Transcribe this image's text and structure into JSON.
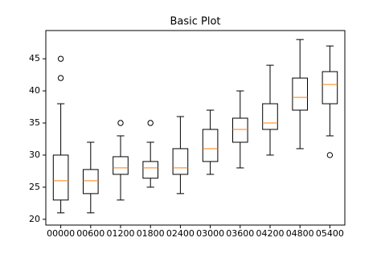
{
  "chart_data": {
    "type": "box",
    "title": "Basic Plot",
    "categories": [
      "00000",
      "00600",
      "01200",
      "01800",
      "02400",
      "03000",
      "03600",
      "04200",
      "04800",
      "05400"
    ],
    "boxes": [
      {
        "low": 21,
        "q1": 23,
        "median": 26,
        "q3": 30,
        "high": 38,
        "outliers": [
          42,
          45
        ]
      },
      {
        "low": 21,
        "q1": 24,
        "median": 26,
        "q3": 27.75,
        "high": 32,
        "outliers": []
      },
      {
        "low": 23,
        "q1": 27,
        "median": 28,
        "q3": 29.75,
        "high": 33,
        "outliers": [
          35
        ]
      },
      {
        "low": 25,
        "q1": 26.4,
        "median": 28,
        "q3": 29,
        "high": 32,
        "outliers": [
          35
        ]
      },
      {
        "low": 24,
        "q1": 27,
        "median": 28,
        "q3": 31,
        "high": 36,
        "outliers": []
      },
      {
        "low": 27,
        "q1": 29,
        "median": 31,
        "q3": 34,
        "high": 37,
        "outliers": []
      },
      {
        "low": 28,
        "q1": 32,
        "median": 34,
        "q3": 35.75,
        "high": 40,
        "outliers": []
      },
      {
        "low": 30,
        "q1": 34,
        "median": 35,
        "q3": 38,
        "high": 44,
        "outliers": []
      },
      {
        "low": 31,
        "q1": 37,
        "median": 39,
        "q3": 42,
        "high": 48,
        "outliers": []
      },
      {
        "low": 33,
        "q1": 38,
        "median": 41,
        "q3": 43,
        "high": 47,
        "outliers": [
          30
        ]
      }
    ],
    "box_color": "#000000",
    "median_color": "#ff7f0e",
    "ylim": [
      19.1,
      49.4
    ],
    "yticks": [
      20,
      25,
      30,
      35,
      40,
      45
    ],
    "grid": false
  }
}
